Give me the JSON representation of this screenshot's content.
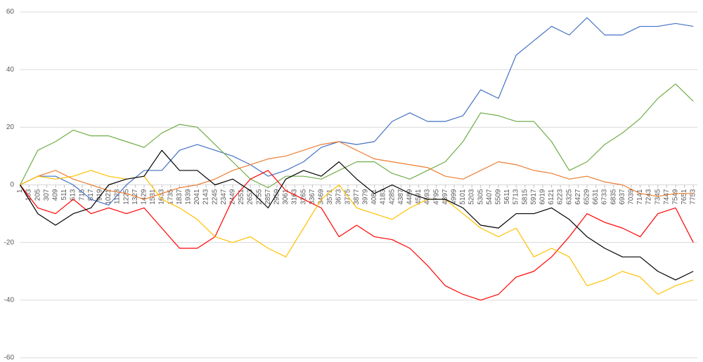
{
  "chart_data": {
    "type": "line",
    "x": [
      1,
      205,
      409,
      613,
      817,
      1021,
      1225,
      1429,
      1633,
      1837,
      2041,
      2245,
      2449,
      2653,
      2857,
      3061,
      3265,
      3469,
      3673,
      3877,
      4081,
      4285,
      4489,
      4693,
      4897,
      5101,
      5305,
      5509,
      5713,
      5917,
      6121,
      6325,
      6529,
      6733,
      6937,
      7141,
      7345,
      7549,
      7753
    ],
    "xlim": [
      1,
      7800
    ],
    "xticks": [
      1,
      103,
      205,
      307,
      409,
      511,
      613,
      715,
      817,
      919,
      1021,
      1123,
      1225,
      1327,
      1429,
      1531,
      1633,
      1735,
      1837,
      1939,
      2041,
      2143,
      2245,
      2347,
      2449,
      2551,
      2653,
      2755,
      2857,
      2959,
      3061,
      3163,
      3265,
      3367,
      3469,
      3571,
      3673,
      3775,
      3877,
      3979,
      4081,
      4183,
      4285,
      4387,
      4489,
      4591,
      4693,
      4795,
      4897,
      4999,
      5101,
      5203,
      5305,
      5407,
      5509,
      5611,
      5713,
      5815,
      5917,
      6019,
      6121,
      6223,
      6325,
      6427,
      6529,
      6631,
      6733,
      6835,
      6937,
      7039,
      7141,
      7243,
      7345,
      7447,
      7549,
      7651,
      7753
    ],
    "ylim": [
      -60,
      60
    ],
    "yticks": [
      -60,
      -40,
      -20,
      0,
      20,
      40,
      60
    ],
    "grid": true,
    "series": [
      {
        "color": "#4472c4",
        "values": [
          0,
          3,
          3,
          0,
          -5,
          -7,
          0,
          5,
          5,
          12,
          14,
          12,
          10,
          7,
          3,
          5,
          8,
          13,
          15,
          14,
          15,
          22,
          25,
          22,
          22,
          24,
          33,
          30,
          45,
          50,
          55,
          52,
          58,
          52,
          52,
          55,
          55,
          56,
          55
        ]
      },
      {
        "color": "#70ad47",
        "values": [
          0,
          12,
          15,
          19,
          17,
          17,
          15,
          13,
          18,
          21,
          20,
          14,
          8,
          2,
          -1,
          3,
          3,
          2,
          5,
          8,
          8,
          4,
          2,
          5,
          8,
          15,
          25,
          24,
          22,
          22,
          15,
          5,
          8,
          14,
          18,
          23,
          30,
          35,
          29
        ]
      },
      {
        "color": "#ed7d31",
        "values": [
          0,
          3,
          5,
          2,
          0,
          -2,
          -3,
          -5,
          -3,
          -1,
          0,
          2,
          5,
          7,
          9,
          10,
          12,
          14,
          15,
          12,
          9,
          8,
          7,
          6,
          3,
          2,
          5,
          8,
          7,
          5,
          4,
          2,
          3,
          1,
          0,
          -3,
          -4,
          -3,
          -3
        ]
      },
      {
        "color": "#ff0000",
        "values": [
          0,
          -8,
          -10,
          -5,
          -10,
          -8,
          -10,
          -8,
          -15,
          -22,
          -22,
          -18,
          -5,
          2,
          5,
          -2,
          -5,
          -8,
          -18,
          -14,
          -18,
          -19,
          -22,
          -28,
          -35,
          -38,
          -40,
          -38,
          -32,
          -30,
          -25,
          -18,
          -10,
          -13,
          -15,
          -18,
          -10,
          -8,
          -20
        ]
      },
      {
        "color": "#ffc000",
        "values": [
          0,
          3,
          2,
          3,
          5,
          3,
          2,
          3,
          -5,
          -8,
          -12,
          -18,
          -20,
          -18,
          -22,
          -25,
          -15,
          -5,
          0,
          -8,
          -10,
          -12,
          -8,
          -5,
          -5,
          -10,
          -15,
          -18,
          -15,
          -25,
          -22,
          -25,
          -35,
          -33,
          -30,
          -32,
          -38,
          -35,
          -33
        ]
      },
      {
        "color": "#000000",
        "values": [
          0,
          -10,
          -14,
          -10,
          -8,
          0,
          2,
          3,
          12,
          5,
          5,
          0,
          2,
          -2,
          -8,
          2,
          5,
          3,
          8,
          2,
          -3,
          0,
          -3,
          -5,
          -5,
          -8,
          -14,
          -15,
          -10,
          -10,
          -8,
          -12,
          -18,
          -22,
          -25,
          -25,
          -30,
          -33,
          -30
        ]
      }
    ]
  }
}
